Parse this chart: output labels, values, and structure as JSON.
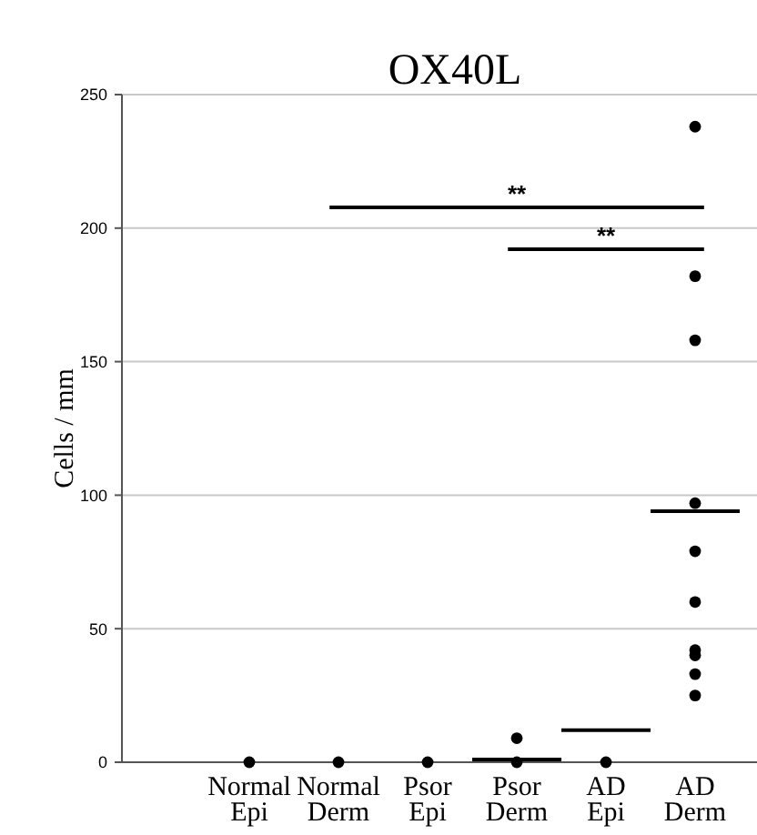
{
  "chart_data": {
    "type": "scatter",
    "title": "OX40L",
    "ylabel": "Cells / mm",
    "categories": [
      "Normal Epi",
      "Normal Derm",
      "Psor Epi",
      "Psor Derm",
      "AD Epi",
      "AD Derm"
    ],
    "ylim": [
      0,
      250
    ],
    "yticks": [
      0,
      50,
      100,
      150,
      200,
      250
    ],
    "grid": "y",
    "marker": "circle",
    "series": [
      {
        "color": "#000000",
        "x": [
          "Normal Epi",
          "Normal Derm",
          "Psor Epi",
          "Psor Derm",
          "Psor Derm",
          "AD Epi",
          "AD Derm",
          "AD Derm",
          "AD Derm",
          "AD Derm",
          "AD Derm",
          "AD Derm",
          "AD Derm",
          "AD Derm",
          "AD Derm",
          "AD Derm"
        ],
        "values": [
          0,
          0,
          0,
          0,
          9,
          0,
          238,
          182,
          158,
          97,
          79,
          60,
          42,
          40,
          33,
          25
        ]
      },
      {
        "type": "box",
        "color": "#000000",
        "boxes": [
          null,
          null,
          null,
          {
            "low": 1,
            "q1": 1,
            "median": 1,
            "q3": 1,
            "high": 1
          },
          {
            "low": 12,
            "q1": 12,
            "median": 12,
            "q3": 12,
            "high": 12
          },
          {
            "low": 94,
            "q1": 94,
            "median": 94,
            "q3": 94,
            "high": 94
          }
        ]
      }
    ],
    "annotations": [
      "**",
      "**"
    ]
  }
}
